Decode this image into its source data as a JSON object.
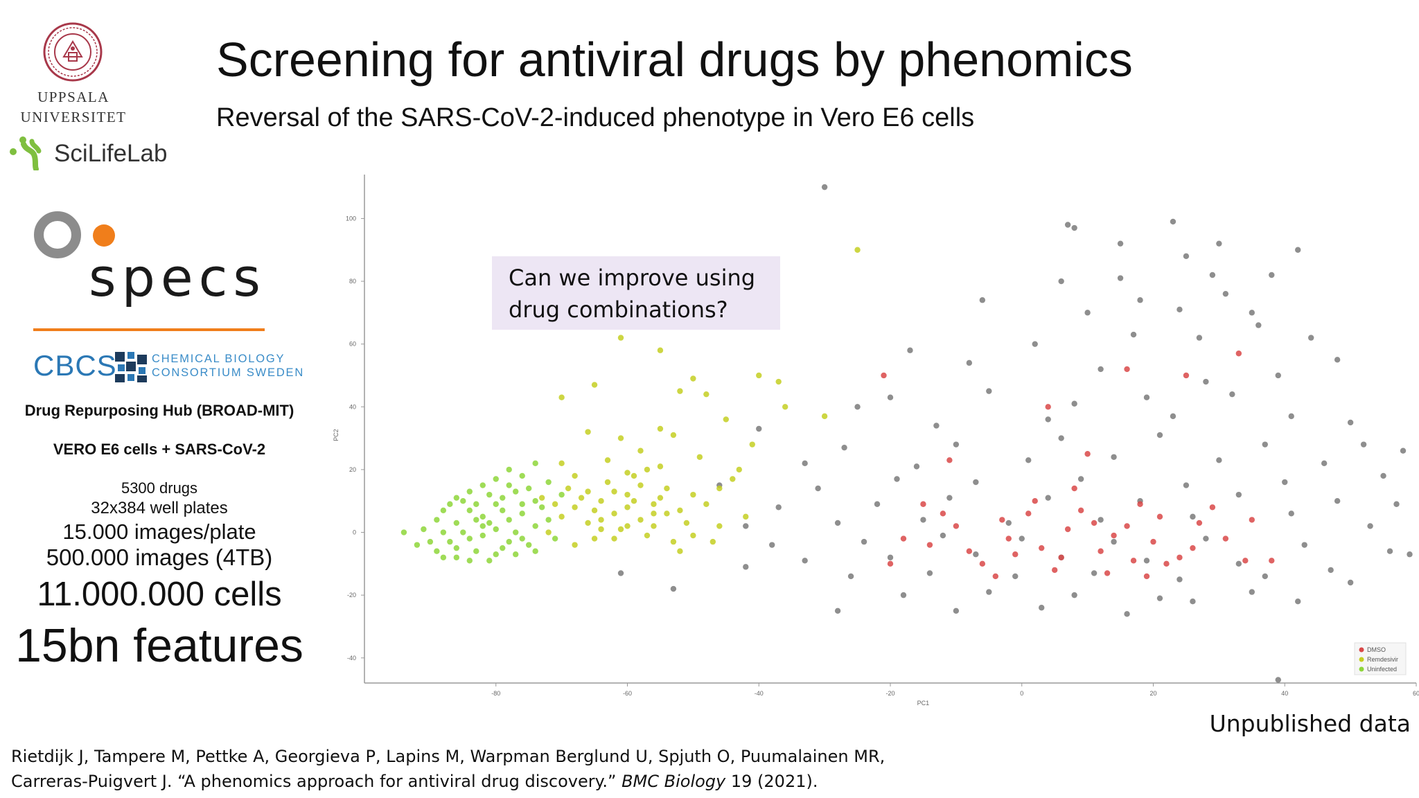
{
  "slide": {
    "title": "Screening for antiviral drugs by phenomics",
    "subtitle": "Reversal of the SARS-CoV-2-induced phenotype in Vero E6 cells"
  },
  "logos": {
    "uppsala_line1": "UPPSALA",
    "uppsala_line2": "UNIVERSITET",
    "scilifelab": "SciLifeLab",
    "specs": "specs",
    "cbcs": "CBCS",
    "cbcs_sub_line1": "CHEMICAL BIOLOGY",
    "cbcs_sub_line2": "CONSORTIUM SWEDEN",
    "colors": {
      "specs_orange": "#f07e1b",
      "specs_gray": "#8c8c8c",
      "cbcs_blue": "#2b78b5",
      "scilife_green": "#7fbf3f",
      "uppsala_red": "#a8384a"
    }
  },
  "left_panel": {
    "line1": "Drug Repurposing Hub (BROAD-MIT)",
    "line2": "VERO E6 cells + SARS-CoV-2",
    "line3": "5300 drugs",
    "line4": "32x384 well plates",
    "line5": "15.000 images/plate",
    "line6": "500.000 images (4TB)",
    "line7": "11.000.000 cells",
    "line8": "15bn features"
  },
  "callout": {
    "line1": "Can we improve using",
    "line2": "drug combinations?"
  },
  "footer": {
    "unpublished": "Unpublished data",
    "citation_line1": "Rietdijk J, Tampere M, Pettke A, Georgieva P, Lapins M, Warpman Berglund U, Spjuth O, Puumalainen MR,",
    "citation_line2_start": "Carreras-Puigvert J. “A phenomics approach for antiviral drug discovery.” ",
    "citation_journal": "BMC Biology",
    "citation_line2_end": " 19 (2021)."
  },
  "chart_data": {
    "type": "scatter",
    "xlabel": "PC1",
    "ylabel": "PC2",
    "xlim": [
      -100,
      60
    ],
    "ylim": [
      -48,
      114
    ],
    "x_ticks": [
      -80,
      -60,
      -40,
      -20,
      0,
      20,
      40,
      60
    ],
    "y_ticks": [
      -40,
      -20,
      0,
      20,
      40,
      60,
      80,
      100
    ],
    "grid": false,
    "legend_position": "bottom-right",
    "series": [
      {
        "name": "DMSO",
        "color": "#d94848",
        "points": [
          [
            -2,
            -2
          ],
          [
            3,
            -5
          ],
          [
            7,
            1
          ],
          [
            12,
            -6
          ],
          [
            16,
            2
          ],
          [
            20,
            -3
          ],
          [
            24,
            -8
          ],
          [
            -6,
            -10
          ],
          [
            -10,
            2
          ],
          [
            1,
            6
          ],
          [
            9,
            7
          ],
          [
            18,
            9
          ],
          [
            27,
            3
          ],
          [
            31,
            -2
          ],
          [
            -14,
            -4
          ],
          [
            5,
            -12
          ],
          [
            -3,
            4
          ],
          [
            14,
            -1
          ],
          [
            22,
            -10
          ],
          [
            -8,
            -6
          ],
          [
            11,
            3
          ],
          [
            26,
            -5
          ],
          [
            -18,
            -2
          ],
          [
            35,
            4
          ],
          [
            6,
            -8
          ],
          [
            -4,
            -14
          ],
          [
            17,
            -9
          ],
          [
            2,
            10
          ],
          [
            29,
            8
          ],
          [
            -12,
            6
          ],
          [
            8,
            14
          ],
          [
            -1,
            -7
          ],
          [
            21,
            5
          ],
          [
            13,
            -13
          ],
          [
            -20,
            -10
          ],
          [
            34,
            -9
          ],
          [
            10,
            25
          ],
          [
            16,
            52
          ],
          [
            25,
            50
          ],
          [
            -21,
            50
          ],
          [
            33,
            57
          ],
          [
            4,
            40
          ],
          [
            -11,
            23
          ],
          [
            38,
            -9
          ],
          [
            19,
            -14
          ],
          [
            -15,
            9
          ]
        ]
      },
      {
        "name": "Remdesivir",
        "color": "#c4cf22",
        "points": [
          [
            -70,
            5
          ],
          [
            -68,
            8
          ],
          [
            -66,
            3
          ],
          [
            -64,
            10
          ],
          [
            -62,
            6
          ],
          [
            -60,
            12
          ],
          [
            -58,
            4
          ],
          [
            -56,
            9
          ],
          [
            -54,
            14
          ],
          [
            -52,
            7
          ],
          [
            -72,
            0
          ],
          [
            -69,
            14
          ],
          [
            -65,
            -2
          ],
          [
            -63,
            16
          ],
          [
            -61,
            1
          ],
          [
            -59,
            18
          ],
          [
            -57,
            -1
          ],
          [
            -55,
            11
          ],
          [
            -53,
            -3
          ],
          [
            -51,
            3
          ],
          [
            -67,
            11
          ],
          [
            -62,
            -2
          ],
          [
            -60,
            8
          ],
          [
            -58,
            15
          ],
          [
            -56,
            2
          ],
          [
            -71,
            9
          ],
          [
            -64,
            4
          ],
          [
            -66,
            13
          ],
          [
            -59,
            10
          ],
          [
            -54,
            6
          ],
          [
            -50,
            12
          ],
          [
            -48,
            9
          ],
          [
            -46,
            2
          ],
          [
            -63,
            23
          ],
          [
            -61,
            30
          ],
          [
            -58,
            26
          ],
          [
            -55,
            21
          ],
          [
            -66,
            32
          ],
          [
            -70,
            22
          ],
          [
            -49,
            24
          ],
          [
            -53,
            31
          ],
          [
            -44,
            17
          ],
          [
            -42,
            5
          ],
          [
            -47,
            -3
          ],
          [
            -68,
            -4
          ],
          [
            -52,
            -6
          ],
          [
            -57,
            20
          ],
          [
            -62,
            13
          ],
          [
            -65,
            7
          ],
          [
            -60,
            2
          ],
          [
            -56,
            6
          ],
          [
            -61,
            62
          ],
          [
            -55,
            58
          ],
          [
            -50,
            49
          ],
          [
            -52,
            45
          ],
          [
            -48,
            44
          ],
          [
            -40,
            50
          ],
          [
            -37,
            48
          ],
          [
            -25,
            90
          ],
          [
            -36,
            40
          ],
          [
            -30,
            37
          ],
          [
            -65,
            47
          ],
          [
            -70,
            43
          ],
          [
            -55,
            33
          ],
          [
            -45,
            36
          ],
          [
            -41,
            28
          ],
          [
            -68,
            18
          ],
          [
            -73,
            11
          ],
          [
            -64,
            1
          ],
          [
            -60,
            19
          ],
          [
            -50,
            -1
          ],
          [
            -46,
            14
          ],
          [
            -43,
            20
          ]
        ]
      },
      {
        "name": "Uninfected",
        "color": "#8ed63a",
        "points": [
          [
            -88,
            0
          ],
          [
            -86,
            3
          ],
          [
            -84,
            -2
          ],
          [
            -82,
            5
          ],
          [
            -80,
            1
          ],
          [
            -78,
            -3
          ],
          [
            -76,
            6
          ],
          [
            -74,
            2
          ],
          [
            -86,
            -5
          ],
          [
            -84,
            7
          ],
          [
            -82,
            -1
          ],
          [
            -80,
            9
          ],
          [
            -78,
            4
          ],
          [
            -76,
            -2
          ],
          [
            -74,
            10
          ],
          [
            -89,
            4
          ],
          [
            -87,
            -3
          ],
          [
            -85,
            10
          ],
          [
            -83,
            -6
          ],
          [
            -81,
            12
          ],
          [
            -79,
            -5
          ],
          [
            -77,
            13
          ],
          [
            -75,
            -4
          ],
          [
            -73,
            8
          ],
          [
            -90,
            -3
          ],
          [
            -88,
            7
          ],
          [
            -86,
            -8
          ],
          [
            -84,
            13
          ],
          [
            -82,
            2
          ],
          [
            -80,
            -7
          ],
          [
            -78,
            15
          ],
          [
            -76,
            9
          ],
          [
            -74,
            -6
          ],
          [
            -72,
            4
          ],
          [
            -85,
            0
          ],
          [
            -81,
            3
          ],
          [
            -79,
            7
          ],
          [
            -77,
            0
          ],
          [
            -83,
            4
          ],
          [
            -87,
            9
          ],
          [
            -91,
            1
          ],
          [
            -89,
            -6
          ],
          [
            -80,
            17
          ],
          [
            -76,
            18
          ],
          [
            -72,
            16
          ],
          [
            -84,
            -9
          ],
          [
            -92,
            -4
          ],
          [
            -94,
            0
          ],
          [
            -74,
            22
          ],
          [
            -78,
            20
          ],
          [
            -82,
            15
          ],
          [
            -86,
            11
          ],
          [
            -70,
            12
          ],
          [
            -71,
            -2
          ],
          [
            -75,
            14
          ],
          [
            -88,
            -8
          ],
          [
            -83,
            9
          ],
          [
            -79,
            11
          ],
          [
            -77,
            -7
          ],
          [
            -81,
            -9
          ]
        ]
      },
      {
        "name": "",
        "color": "#7a7a7a",
        "points": [
          [
            -30,
            110
          ],
          [
            7,
            98
          ],
          [
            8,
            97
          ],
          [
            23,
            99
          ],
          [
            15,
            92
          ],
          [
            30,
            92
          ],
          [
            42,
            90
          ],
          [
            25,
            88
          ],
          [
            6,
            80
          ],
          [
            15,
            81
          ],
          [
            29,
            82
          ],
          [
            38,
            82
          ],
          [
            18,
            74
          ],
          [
            31,
            76
          ],
          [
            35,
            70
          ],
          [
            -6,
            74
          ],
          [
            10,
            70
          ],
          [
            24,
            71
          ],
          [
            36,
            66
          ],
          [
            44,
            62
          ],
          [
            -17,
            58
          ],
          [
            -8,
            54
          ],
          [
            2,
            60
          ],
          [
            17,
            63
          ],
          [
            27,
            62
          ],
          [
            48,
            55
          ],
          [
            12,
            52
          ],
          [
            28,
            48
          ],
          [
            39,
            50
          ],
          [
            -20,
            43
          ],
          [
            -5,
            45
          ],
          [
            8,
            41
          ],
          [
            19,
            43
          ],
          [
            32,
            44
          ],
          [
            50,
            35
          ],
          [
            -25,
            40
          ],
          [
            -13,
            34
          ],
          [
            4,
            36
          ],
          [
            23,
            37
          ],
          [
            41,
            37
          ],
          [
            -40,
            33
          ],
          [
            -27,
            27
          ],
          [
            -10,
            28
          ],
          [
            6,
            30
          ],
          [
            21,
            31
          ],
          [
            37,
            28
          ],
          [
            52,
            28
          ],
          [
            -33,
            22
          ],
          [
            -16,
            21
          ],
          [
            1,
            23
          ],
          [
            14,
            24
          ],
          [
            30,
            23
          ],
          [
            46,
            22
          ],
          [
            58,
            26
          ],
          [
            -46,
            15
          ],
          [
            -31,
            14
          ],
          [
            -19,
            17
          ],
          [
            -7,
            16
          ],
          [
            9,
            17
          ],
          [
            25,
            15
          ],
          [
            40,
            16
          ],
          [
            55,
            18
          ],
          [
            -37,
            8
          ],
          [
            -22,
            9
          ],
          [
            -11,
            11
          ],
          [
            4,
            11
          ],
          [
            18,
            10
          ],
          [
            33,
            12
          ],
          [
            48,
            10
          ],
          [
            57,
            9
          ],
          [
            -42,
            2
          ],
          [
            -28,
            3
          ],
          [
            -15,
            4
          ],
          [
            -2,
            3
          ],
          [
            12,
            4
          ],
          [
            26,
            5
          ],
          [
            41,
            6
          ],
          [
            53,
            2
          ],
          [
            -38,
            -4
          ],
          [
            -24,
            -3
          ],
          [
            -12,
            -1
          ],
          [
            0,
            -2
          ],
          [
            14,
            -3
          ],
          [
            28,
            -2
          ],
          [
            43,
            -4
          ],
          [
            56,
            -6
          ],
          [
            -33,
            -9
          ],
          [
            -20,
            -8
          ],
          [
            -7,
            -7
          ],
          [
            6,
            -8
          ],
          [
            19,
            -9
          ],
          [
            33,
            -10
          ],
          [
            47,
            -12
          ],
          [
            59,
            -7
          ],
          [
            -26,
            -14
          ],
          [
            -14,
            -13
          ],
          [
            -1,
            -14
          ],
          [
            11,
            -13
          ],
          [
            24,
            -15
          ],
          [
            37,
            -14
          ],
          [
            50,
            -16
          ],
          [
            -18,
            -20
          ],
          [
            -5,
            -19
          ],
          [
            8,
            -20
          ],
          [
            21,
            -21
          ],
          [
            35,
            -19
          ],
          [
            -10,
            -25
          ],
          [
            3,
            -24
          ],
          [
            16,
            -26
          ],
          [
            -28,
            -25
          ],
          [
            -61,
            -13
          ],
          [
            -53,
            -18
          ],
          [
            -42,
            -11
          ],
          [
            26,
            -22
          ],
          [
            42,
            -22
          ],
          [
            39,
            -47
          ]
        ]
      }
    ]
  }
}
